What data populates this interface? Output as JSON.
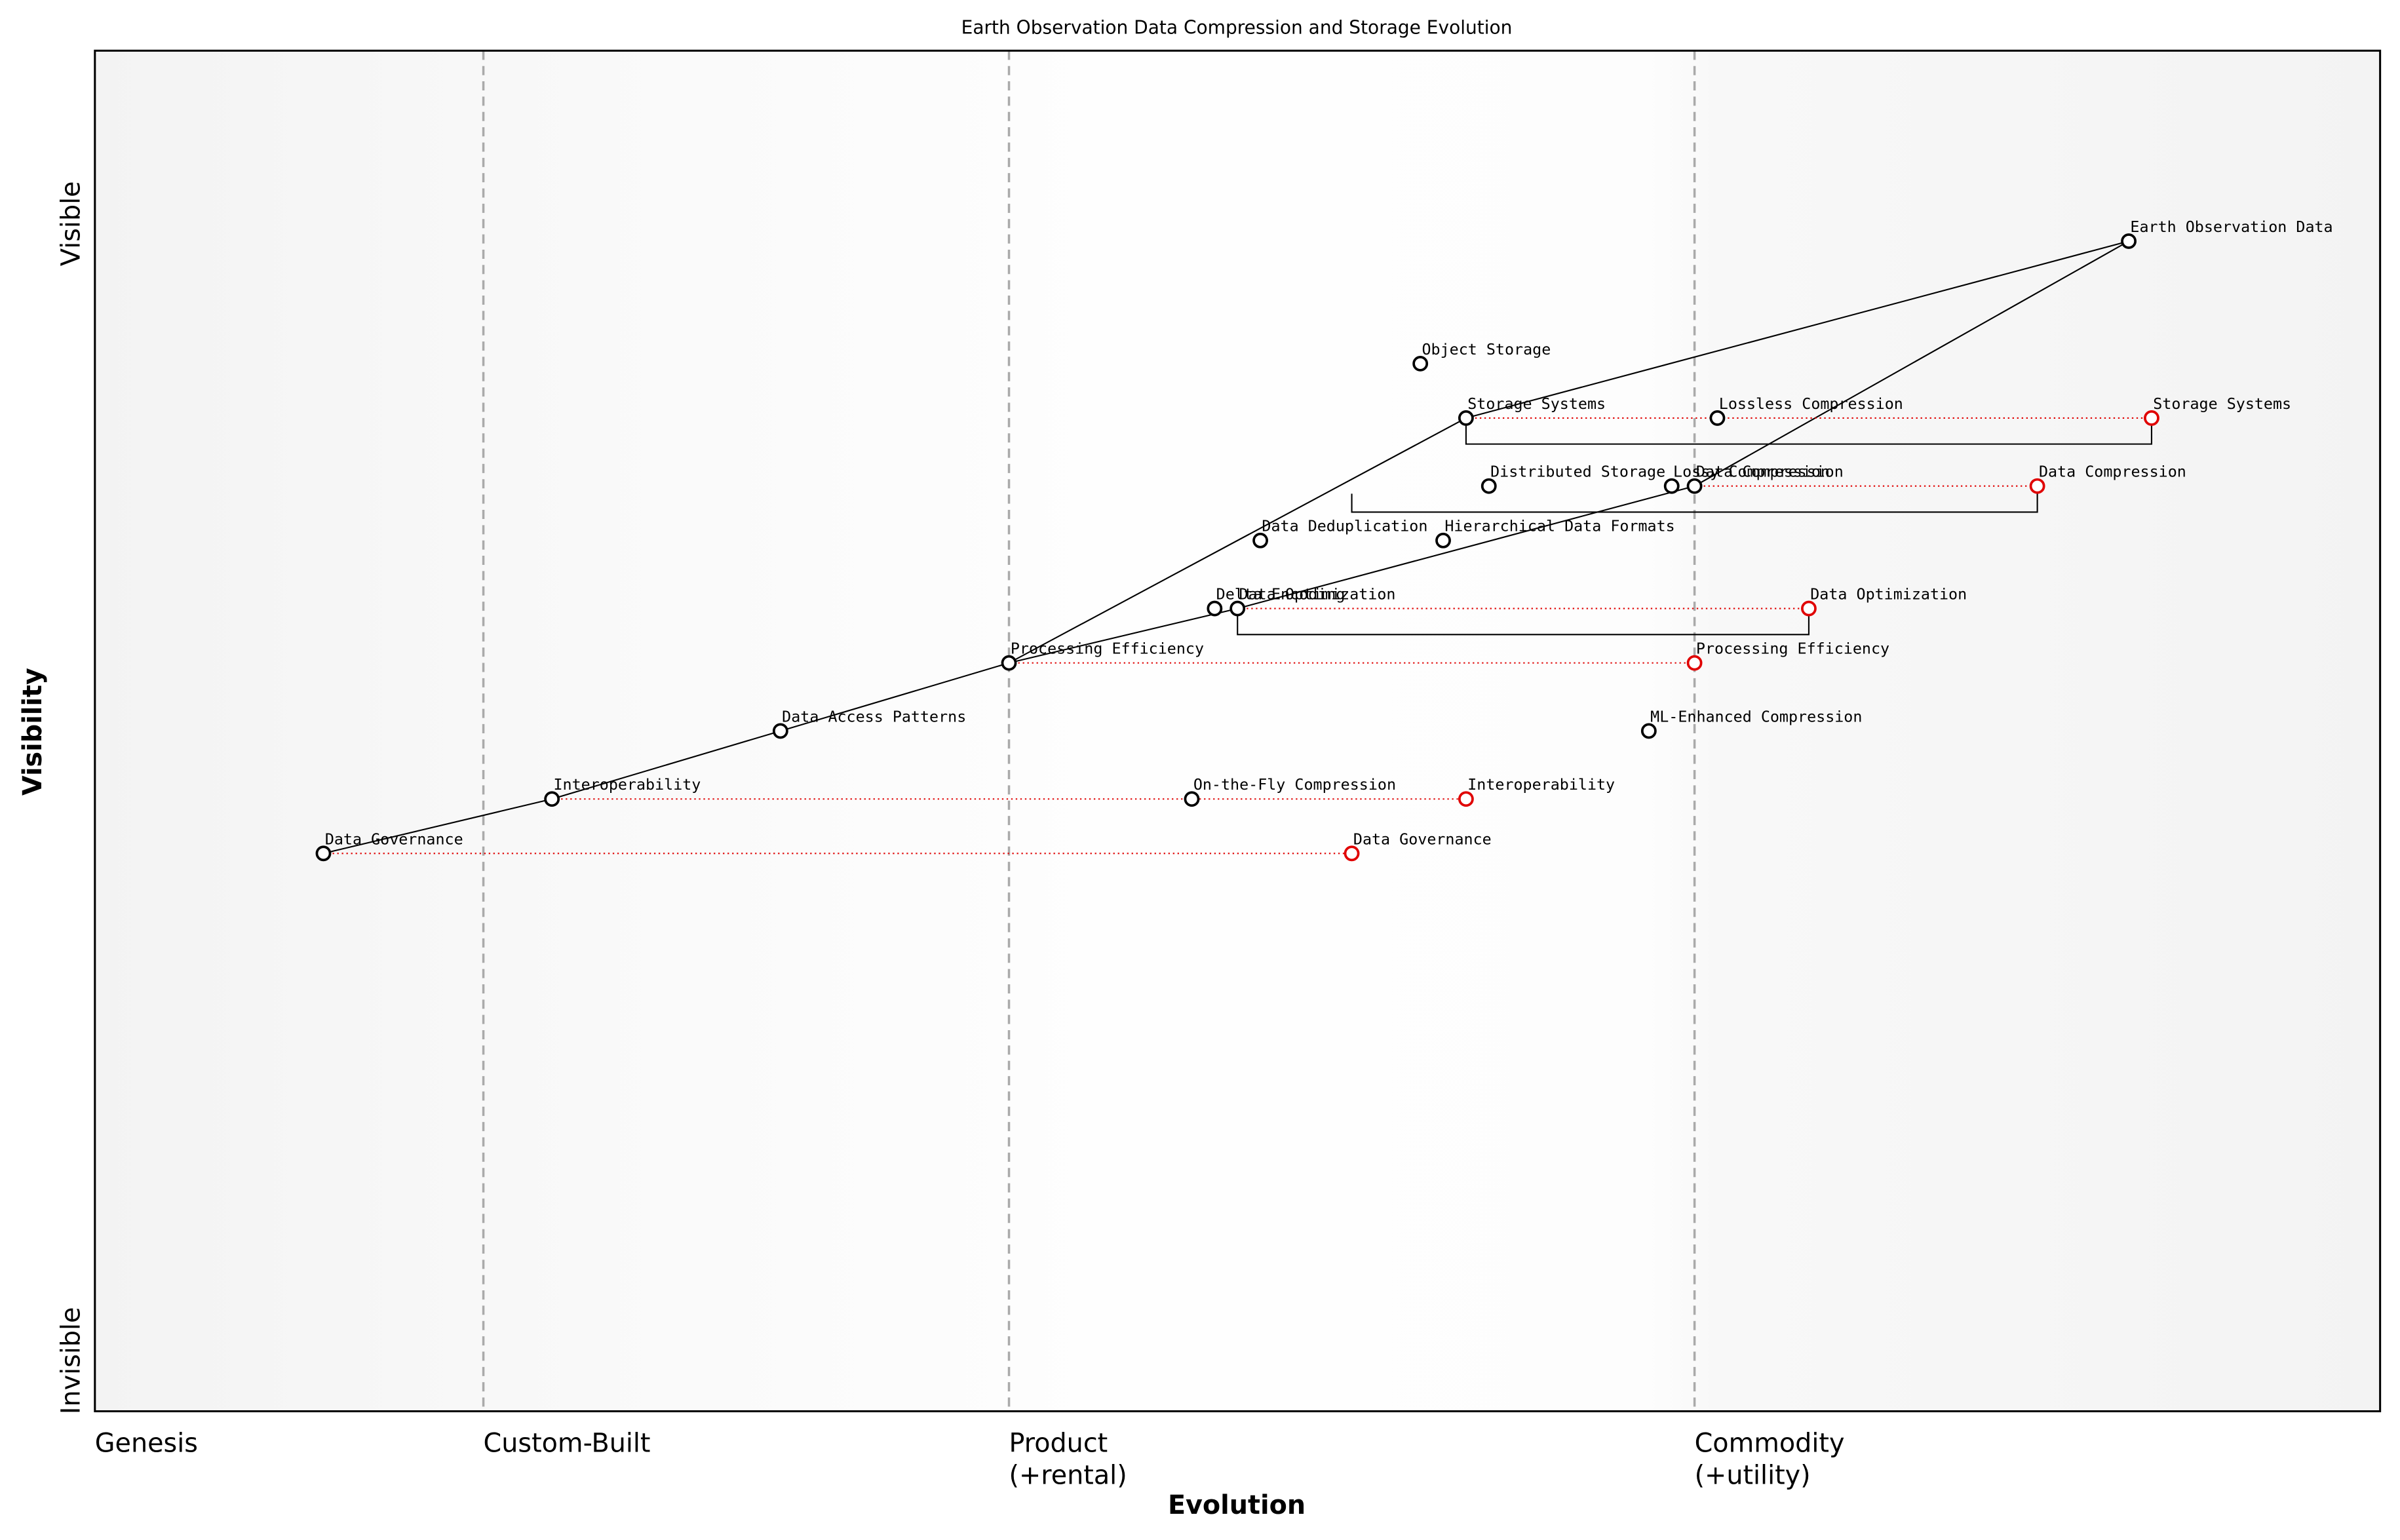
{
  "chart_data": {
    "type": "wardley",
    "title": "Earth Observation Data Compression and Storage Evolution",
    "x_label": "Evolution",
    "y_label": "Visibility",
    "y_top_label": "Visible",
    "y_bottom_label": "Invisible",
    "xlim": [
      0,
      1
    ],
    "ylim": [
      0,
      1
    ],
    "xticks": [
      {
        "value": 0,
        "label": [
          "Genesis"
        ]
      },
      {
        "value": 0.17,
        "label": [
          "Custom-Built"
        ]
      },
      {
        "value": 0.4,
        "label": [
          "Product",
          "(+rental)"
        ]
      },
      {
        "value": 0.7,
        "label": [
          "Commodity",
          "(+utility)"
        ]
      }
    ],
    "components": [
      {
        "name": "Earth Observation Data",
        "evolution": 0.89,
        "visibility": 0.86
      },
      {
        "name": "Object Storage",
        "evolution": 0.58,
        "visibility": 0.77
      },
      {
        "name": "Storage Systems",
        "evolution": 0.6,
        "visibility": 0.73
      },
      {
        "name": "Lossless Compression",
        "evolution": 0.71,
        "visibility": 0.73
      },
      {
        "name": "Distributed Storage",
        "evolution": 0.61,
        "visibility": 0.68
      },
      {
        "name": "Lossy Compression",
        "evolution": 0.69,
        "visibility": 0.68
      },
      {
        "name": "Data Compression",
        "evolution": 0.7,
        "visibility": 0.68
      },
      {
        "name": "Data Deduplication",
        "evolution": 0.51,
        "visibility": 0.64
      },
      {
        "name": "Hierarchical Data Formats",
        "evolution": 0.59,
        "visibility": 0.64
      },
      {
        "name": "Delta Encoding",
        "evolution": 0.49,
        "visibility": 0.59
      },
      {
        "name": "Data Optimization",
        "evolution": 0.5,
        "visibility": 0.59
      },
      {
        "name": "Processing Efficiency",
        "evolution": 0.4,
        "visibility": 0.55
      },
      {
        "name": "ML-Enhanced Compression",
        "evolution": 0.68,
        "visibility": 0.5
      },
      {
        "name": "Data Access Patterns",
        "evolution": 0.3,
        "visibility": 0.5
      },
      {
        "name": "Interoperability",
        "evolution": 0.2,
        "visibility": 0.45
      },
      {
        "name": "On-the-Fly Compression",
        "evolution": 0.48,
        "visibility": 0.45
      },
      {
        "name": "Data Governance",
        "evolution": 0.1,
        "visibility": 0.41
      }
    ],
    "links": [
      {
        "from": "Earth Observation Data",
        "to": "Storage Systems"
      },
      {
        "from": "Earth Observation Data",
        "to": "Data Compression"
      },
      {
        "from": "Storage Systems",
        "to": "Processing Efficiency"
      },
      {
        "from": "Data Compression",
        "to": "Data Optimization"
      },
      {
        "from": "Data Optimization",
        "to": "Processing Efficiency"
      },
      {
        "from": "Processing Efficiency",
        "to": "Data Access Patterns"
      },
      {
        "from": "Data Access Patterns",
        "to": "Interoperability"
      },
      {
        "from": "Interoperability",
        "to": "Data Governance"
      }
    ],
    "evolve": [
      {
        "component": "Storage Systems",
        "evolution": 0.9
      },
      {
        "component": "Data Compression",
        "evolution": 0.85
      },
      {
        "component": "Data Optimization",
        "evolution": 0.75
      },
      {
        "component": "Processing Efficiency",
        "evolution": 0.7
      },
      {
        "component": "Interoperability",
        "evolution": 0.6
      },
      {
        "component": "Data Governance",
        "evolution": 0.55
      }
    ],
    "pipelines": [
      {
        "component": "Storage Systems",
        "start": 0.6,
        "end": 0.9
      },
      {
        "component": "Data Compression",
        "start": 0.55,
        "end": 0.85
      },
      {
        "component": "Data Optimization",
        "start": 0.5,
        "end": 0.75
      }
    ],
    "evolve_color": "#e00000",
    "color": "#000000"
  }
}
